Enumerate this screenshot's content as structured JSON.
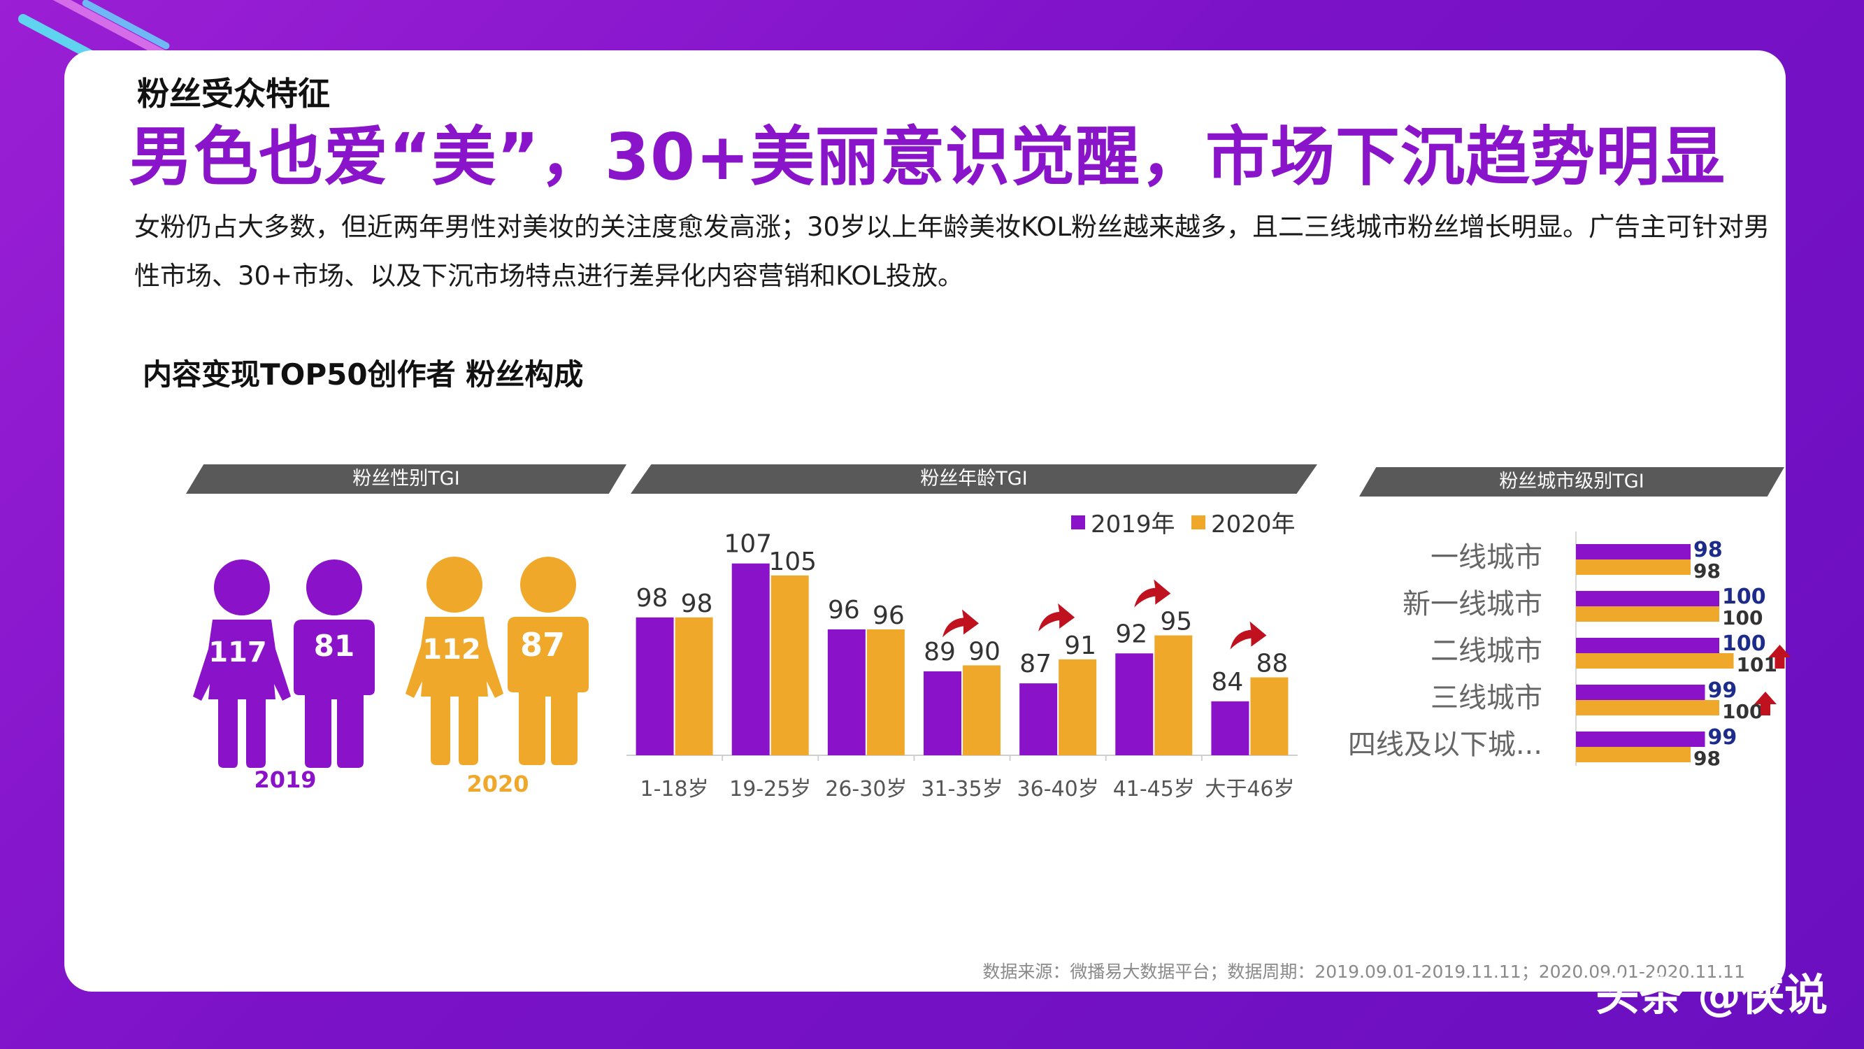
{
  "colors": {
    "purple": "#8a12c8",
    "orange": "#f0a82b",
    "banner": "#595959",
    "title": "#8a14c9"
  },
  "header": {
    "section_label": "粉丝受众特征",
    "headline": "男色也爱“美”，30+美丽意识觉醒，市场下沉趋势明显",
    "description": "女粉仍占大多数，但近两年男性对美妆的关注度愈发高涨；30岁以上年龄美妆KOL粉丝越来越多，且二三线城市粉丝增长明显。广告主可针对男性市场、30+市场、以及下沉市场特点进行差异化内容营销和KOL投放。"
  },
  "chart_title": "内容变现TOP50创作者 粉丝构成",
  "banners": {
    "gender": "粉丝性别TGI",
    "age": "粉丝年龄TGI",
    "city": "粉丝城市级别TGI"
  },
  "chart_data": [
    {
      "type": "pictogram",
      "title": "粉丝性别TGI",
      "groups": [
        {
          "year": "2019",
          "female": 117,
          "male": 81
        },
        {
          "year": "2020",
          "female": 112,
          "male": 87
        }
      ]
    },
    {
      "type": "bar",
      "title": "粉丝年龄TGI",
      "categories": [
        "1-18岁",
        "19-25岁",
        "26-30岁",
        "31-35岁",
        "36-40岁",
        "41-45岁",
        "大于46岁"
      ],
      "series": [
        {
          "name": "2019年",
          "values": [
            98,
            107,
            96,
            89,
            87,
            92,
            84
          ]
        },
        {
          "name": "2020年",
          "values": [
            98,
            105,
            96,
            90,
            91,
            95,
            88
          ]
        }
      ],
      "ylim": [
        75,
        110
      ],
      "increase_arrows": [
        "31-35岁",
        "36-40岁",
        "41-45岁",
        "大于46岁"
      ]
    },
    {
      "type": "bar",
      "orientation": "horizontal",
      "title": "粉丝城市级别TGI",
      "categories": [
        "一线城市",
        "新一线城市",
        "二线城市",
        "三线城市",
        "四线及以下城..."
      ],
      "series": [
        {
          "name": "2019年",
          "values": [
            98,
            100,
            100,
            99,
            99
          ]
        },
        {
          "name": "2020年",
          "values": [
            98,
            100,
            101,
            100,
            98
          ]
        }
      ],
      "xlim": [
        90,
        102
      ],
      "increase_arrows": [
        "二线城市",
        "三线城市"
      ]
    }
  ],
  "legend": [
    "2019年",
    "2020年"
  ],
  "source": "数据来源：微播易大数据平台；数据周期：2019.09.01-2019.11.11；2020.09.01-2020.11.11",
  "watermark": "头条 @侠说"
}
